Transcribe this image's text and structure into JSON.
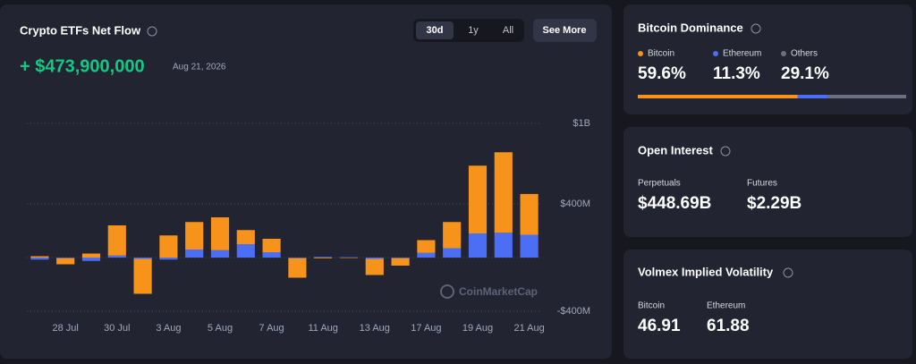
{
  "net_flow": {
    "title": "Crypto ETFs Net Flow",
    "value": "+ $473,900,000",
    "date": "Aug 21, 2026",
    "tabs": [
      "30d",
      "1y",
      "All"
    ],
    "button": "See More",
    "watermark": "CoinMarketCap"
  },
  "chart_data": {
    "type": "bar",
    "stacked": true,
    "categories": [
      null,
      "28 Jul",
      null,
      "30 Jul",
      null,
      "3 Aug",
      null,
      "5 Aug",
      null,
      "7 Aug",
      null,
      "11 Aug",
      null,
      "13 Aug",
      null,
      "17 Aug",
      null,
      "19 Aug",
      null,
      "21 Aug"
    ],
    "series": [
      {
        "color": "#4c6ef5",
        "values": [
          -15000000,
          -5000000,
          -25000000,
          15000000,
          -10000000,
          -15000000,
          60000000,
          55000000,
          100000000,
          40000000,
          -5000000,
          5000000,
          3000000,
          -10000000,
          -5000000,
          35000000,
          70000000,
          180000000,
          185000000,
          170000000
        ]
      },
      {
        "color": "#f7931a",
        "values": [
          10000000,
          -45000000,
          30000000,
          225000000,
          -260000000,
          165000000,
          205000000,
          245000000,
          105000000,
          100000000,
          -145000000,
          -5000000,
          -3000000,
          -120000000,
          -55000000,
          95000000,
          195000000,
          505000000,
          600000000,
          304000000
        ]
      }
    ],
    "ylim": [
      -400000000,
      1200000000
    ],
    "yticks": [
      {
        "value": -400000000,
        "label": "-$400M"
      },
      {
        "value": 400000000,
        "label": "$400M"
      },
      {
        "value": 1000000000,
        "label": "$1B"
      }
    ],
    "grid": true
  },
  "dominance": {
    "title": "Bitcoin Dominance",
    "names": [
      "Bitcoin",
      "Ethereum",
      "Others"
    ],
    "colors": [
      "#f7931a",
      "#4c6ef5",
      "#6b7080"
    ],
    "values": [
      59.6,
      11.3,
      29.1
    ],
    "value_labels": [
      "59.6%",
      "11.3%",
      "29.1%"
    ]
  },
  "open_interest": {
    "title": "Open Interest",
    "items": [
      {
        "label": "Perpetuals",
        "value": "$448.69B"
      },
      {
        "label": "Futures",
        "value": "$2.29B"
      }
    ]
  },
  "volatility": {
    "title": "Volmex Implied Volatility",
    "items": [
      {
        "label": "Bitcoin",
        "value": "46.91"
      },
      {
        "label": "Ethereum",
        "value": "61.88"
      }
    ]
  }
}
